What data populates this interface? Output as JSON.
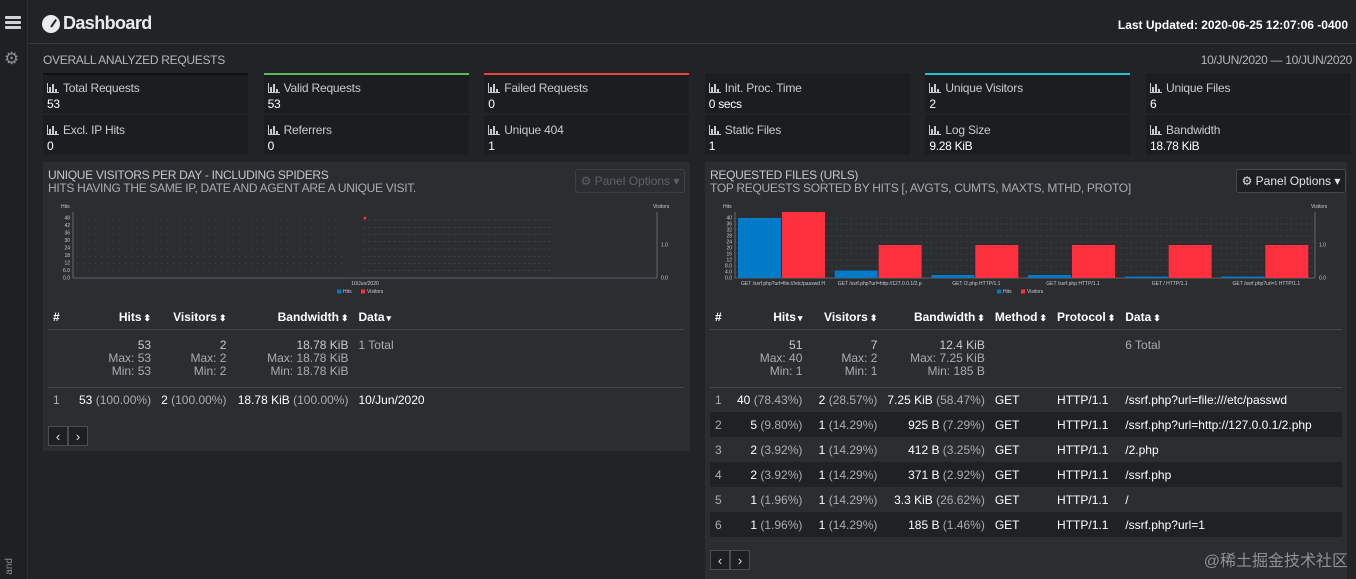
{
  "header": {
    "title": "Dashboard",
    "last_updated": "Last Updated: 2020-06-25 12:07:06 -0400"
  },
  "sidebar": {
    "vertical_text": "and"
  },
  "overall": {
    "title": "OVERALL ANALYZED REQUESTS",
    "date_range": "10/JUN/2020 — 10/JUN/2020",
    "cards": [
      {
        "label": "Total Requests",
        "value": "53",
        "accent": "#0f1012"
      },
      {
        "label": "Valid Requests",
        "value": "53",
        "accent": "#5cb85c"
      },
      {
        "label": "Failed Requests",
        "value": "0",
        "accent": "#e8423f"
      },
      {
        "label": "Init. Proc. Time",
        "value": "0 secs",
        "accent": ""
      },
      {
        "label": "Unique Visitors",
        "value": "2",
        "accent": "#22c0d6"
      },
      {
        "label": "Unique Files",
        "value": "6",
        "accent": ""
      },
      {
        "label": "Excl. IP Hits",
        "value": "0",
        "accent": ""
      },
      {
        "label": "Referrers",
        "value": "0",
        "accent": ""
      },
      {
        "label": "Unique 404",
        "value": "1",
        "accent": ""
      },
      {
        "label": "Static Files",
        "value": "1",
        "accent": ""
      },
      {
        "label": "Log Size",
        "value": "9.28 KiB",
        "accent": ""
      },
      {
        "label": "Bandwidth",
        "value": "18.78 KiB",
        "accent": ""
      }
    ]
  },
  "visitors_panel": {
    "title": "UNIQUE VISITORS PER DAY - INCLUDING SPIDERS",
    "subtitle": "HITS HAVING THE SAME IP, DATE AND AGENT ARE A UNIQUE VISIT.",
    "options_label": "Panel Options",
    "columns": [
      "#",
      "Hits",
      "Visitors",
      "Bandwidth",
      "Data"
    ],
    "summary": {
      "hits": "53",
      "hits_max": "Max: 53",
      "hits_min": "Min: 53",
      "visitors": "2",
      "visitors_max": "Max: 2",
      "visitors_min": "Min: 2",
      "bandwidth": "18.78 KiB",
      "bandwidth_max": "Max: 18.78 KiB",
      "bandwidth_min": "Min: 18.78 KiB",
      "data": "1 Total"
    },
    "rows": [
      {
        "idx": "1",
        "hits": "53",
        "hits_pct": "(100.00%)",
        "visitors": "2",
        "visitors_pct": "(100.00%)",
        "bw": "18.78 KiB",
        "bw_pct": "(100.00%)",
        "data": "10/Jun/2020"
      }
    ],
    "pager": {
      "prev": "‹",
      "next": "›"
    }
  },
  "files_panel": {
    "title": "REQUESTED FILES (URLS)",
    "subtitle": "TOP REQUESTS SORTED BY HITS [, AVGTS, CUMTS, MAXTS, MTHD, PROTO]",
    "options_label": "Panel Options",
    "columns": [
      "#",
      "Hits",
      "Visitors",
      "Bandwidth",
      "Method",
      "Protocol",
      "Data"
    ],
    "summary": {
      "hits": "51",
      "hits_max": "Max: 40",
      "hits_min": "Min: 1",
      "visitors": "7",
      "visitors_max": "Max: 2",
      "visitors_min": "Min: 1",
      "bandwidth": "12.4 KiB",
      "bandwidth_max": "Max: 7.25 KiB",
      "bandwidth_min": "Min: 185 B",
      "data": "6 Total"
    },
    "rows": [
      {
        "idx": "1",
        "hits": "40",
        "hits_pct": "(78.43%)",
        "visitors": "2",
        "visitors_pct": "(28.57%)",
        "bw": "7.25 KiB",
        "bw_pct": "(58.47%)",
        "method": "GET",
        "proto": "HTTP/1.1",
        "data": "/ssrf.php?url=file:///etc/passwd"
      },
      {
        "idx": "2",
        "hits": "5",
        "hits_pct": "(9.80%)",
        "visitors": "1",
        "visitors_pct": "(14.29%)",
        "bw": "925 B",
        "bw_pct": "(7.29%)",
        "method": "GET",
        "proto": "HTTP/1.1",
        "data": "/ssrf.php?url=http://127.0.0.1/2.php"
      },
      {
        "idx": "3",
        "hits": "2",
        "hits_pct": "(3.92%)",
        "visitors": "1",
        "visitors_pct": "(14.29%)",
        "bw": "412 B",
        "bw_pct": "(3.25%)",
        "method": "GET",
        "proto": "HTTP/1.1",
        "data": "/2.php"
      },
      {
        "idx": "4",
        "hits": "2",
        "hits_pct": "(3.92%)",
        "visitors": "1",
        "visitors_pct": "(14.29%)",
        "bw": "371 B",
        "bw_pct": "(2.92%)",
        "method": "GET",
        "proto": "HTTP/1.1",
        "data": "/ssrf.php"
      },
      {
        "idx": "5",
        "hits": "1",
        "hits_pct": "(1.96%)",
        "visitors": "1",
        "visitors_pct": "(14.29%)",
        "bw": "3.3 KiB",
        "bw_pct": "(26.62%)",
        "method": "GET",
        "proto": "HTTP/1.1",
        "data": "/"
      },
      {
        "idx": "6",
        "hits": "1",
        "hits_pct": "(1.96%)",
        "visitors": "1",
        "visitors_pct": "(14.29%)",
        "bw": "185 B",
        "bw_pct": "(1.46%)",
        "method": "GET",
        "proto": "HTTP/1.1",
        "data": "/ssrf.php?url=1"
      }
    ],
    "pager": {
      "prev": "‹",
      "next": "›"
    }
  },
  "watermark": "@稀土掘金技术社区",
  "chart_data": [
    {
      "type": "scatter",
      "title": "",
      "ylabel": "Hits",
      "y2label": "Visitors",
      "categories": [
        "10/Jun/2020"
      ],
      "yticks": [
        "48",
        "42",
        "36",
        "30",
        "24",
        "18",
        "12",
        "6.0",
        "0.0"
      ],
      "y2ticks": [
        "1.0",
        "0.0"
      ],
      "legend": [
        "Hits",
        "Visitors"
      ],
      "legend_position": "bottom-center",
      "colors": {
        "hits": "#007bc7",
        "visitors": "#ff303e"
      },
      "series": [
        {
          "name": "Hits",
          "values": [
            53
          ]
        },
        {
          "name": "Visitors",
          "values": [
            2
          ]
        }
      ]
    },
    {
      "type": "bar",
      "title": "",
      "ylabel": "Hits",
      "y2label": "Visitors",
      "categories": [
        "GET /ssrf.php?url=file:///etc/passwd H",
        "GET /ssrf.php?url=http://127.0.0.1/2.p",
        "GET /2.php HTTP/1.1",
        "GET /ssrf.php HTTP/1.1",
        "GET / HTTP/1.1",
        "GET /ssrf.php?url=1 HTTP/1.1"
      ],
      "yticks": [
        "40",
        "36",
        "32",
        "28",
        "24",
        "20",
        "16",
        "12",
        "8.0",
        "4.0",
        "0.0"
      ],
      "y2ticks": [
        "1.0",
        "0.0"
      ],
      "legend": [
        "Hits",
        "Visitors"
      ],
      "legend_position": "bottom-center",
      "colors": {
        "hits": "#007bc7",
        "visitors": "#ff303e"
      },
      "series": [
        {
          "name": "Hits",
          "values": [
            40,
            5,
            2,
            2,
            1,
            1
          ]
        },
        {
          "name": "Visitors",
          "values": [
            2,
            1,
            1,
            1,
            1,
            1
          ]
        }
      ],
      "ylim": [
        0,
        40
      ],
      "y2lim": [
        0,
        2
      ]
    }
  ]
}
